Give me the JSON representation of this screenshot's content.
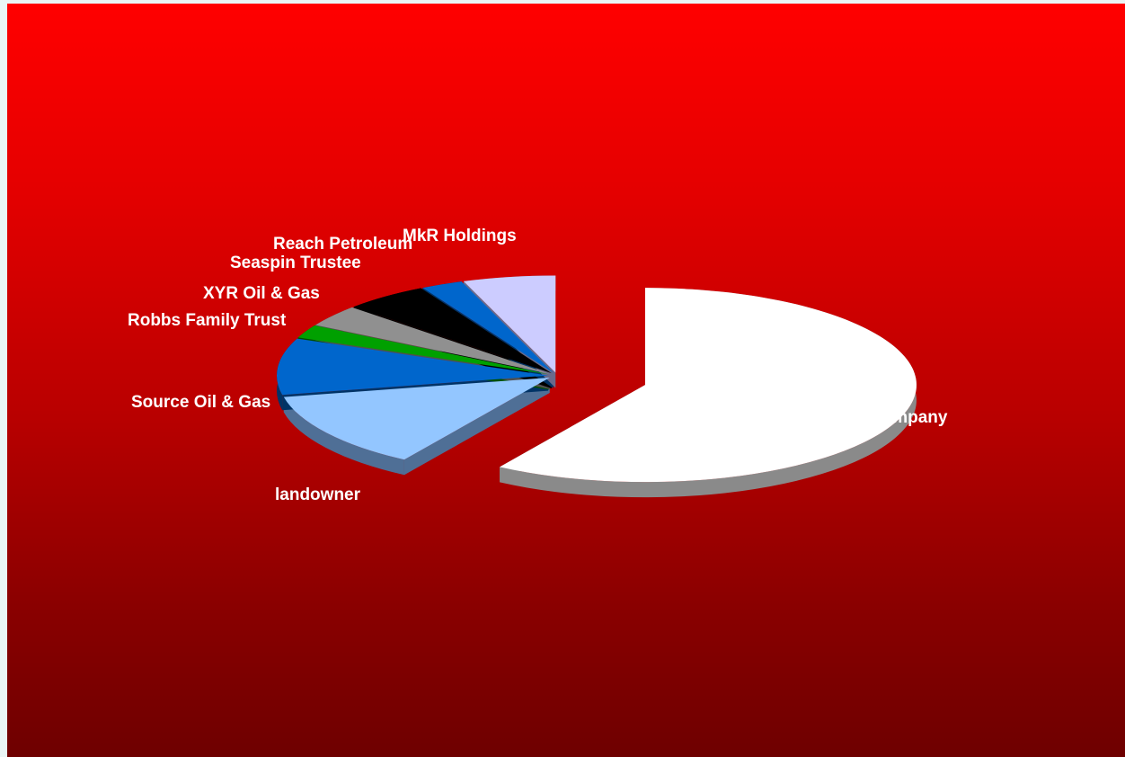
{
  "chart_data": {
    "type": "pie",
    "style": "3d-exploded",
    "legend": "none",
    "slices": [
      {
        "label": "gas company",
        "value": 59.0,
        "color": "#ffffff",
        "side": "#8a8a8a"
      },
      {
        "label": "landowner",
        "value": 12.8,
        "color": "#93c6ff",
        "side": "#4f6f96"
      },
      {
        "label": "Source Oil & Gas",
        "value": 9.4,
        "color": "#0066cc",
        "side": "#003366"
      },
      {
        "label": "Robbs Family Trust",
        "value": 2.2,
        "color": "#00a000",
        "side": "#005000"
      },
      {
        "label": "XYR Oil & Gas",
        "value": 3.6,
        "color": "#909090",
        "side": "#505050"
      },
      {
        "label": "Seaspin Trustee",
        "value": 5.0,
        "color": "#000000",
        "side": "#000000"
      },
      {
        "label": "Reach Petroleum",
        "value": 2.5,
        "color": "#0066cc",
        "side": "#003366"
      },
      {
        "label": "MkR Holdings",
        "value": 5.5,
        "color": "#ccccff",
        "side": "#6a6a8a"
      }
    ]
  }
}
